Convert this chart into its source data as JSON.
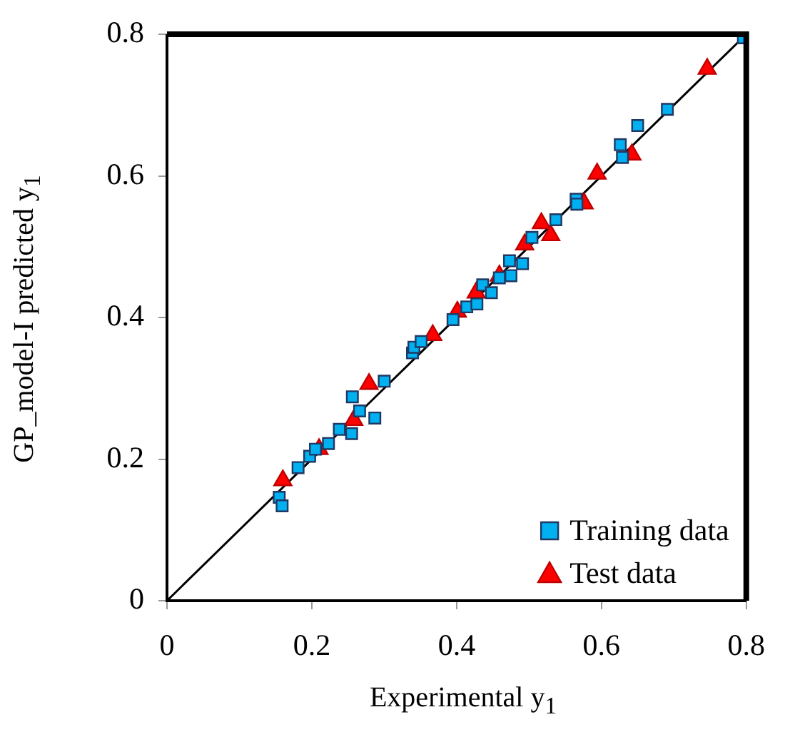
{
  "chart_data": {
    "type": "scatter",
    "xlabel": "Experimental y$_{1}$",
    "ylabel": "GP_model-I predicted y$_{1}$",
    "xlim": [
      0,
      0.8
    ],
    "ylim": [
      0,
      0.8
    ],
    "xticks": [
      0,
      0.2,
      0.4,
      0.6,
      0.8
    ],
    "yticks": [
      0,
      0.2,
      0.4,
      0.6,
      0.8
    ],
    "grid": false,
    "legend": "bottom right",
    "series": [
      {
        "name": "Training data",
        "color": "#00b0f0",
        "marker": "square",
        "x": [
          0.155,
          0.159,
          0.181,
          0.197,
          0.205,
          0.223,
          0.238,
          0.255,
          0.256,
          0.266,
          0.287,
          0.3,
          0.339,
          0.341,
          0.351,
          0.395,
          0.414,
          0.428,
          0.436,
          0.448,
          0.459,
          0.473,
          0.475,
          0.491,
          0.504,
          0.537,
          0.565,
          0.566,
          0.626,
          0.629,
          0.65,
          0.691,
          0.796
        ],
        "values": [
          0.146,
          0.134,
          0.188,
          0.204,
          0.214,
          0.222,
          0.242,
          0.236,
          0.288,
          0.268,
          0.258,
          0.31,
          0.35,
          0.358,
          0.366,
          0.397,
          0.415,
          0.419,
          0.446,
          0.435,
          0.456,
          0.48,
          0.459,
          0.476,
          0.513,
          0.538,
          0.567,
          0.56,
          0.644,
          0.626,
          0.671,
          0.694,
          0.795
        ]
      },
      {
        "name": "Test data",
        "color": "#ff0000",
        "marker": "triangle",
        "x": [
          0.16,
          0.21,
          0.258,
          0.279,
          0.367,
          0.401,
          0.427,
          0.459,
          0.494,
          0.517,
          0.53,
          0.576,
          0.594,
          0.642,
          0.746
        ],
        "values": [
          0.17,
          0.214,
          0.255,
          0.306,
          0.375,
          0.408,
          0.435,
          0.459,
          0.503,
          0.533,
          0.516,
          0.561,
          0.603,
          0.63,
          0.751
        ]
      },
      {
        "type": "line",
        "color": "#000000",
        "marker": "none",
        "x": [
          0,
          0.8
        ],
        "values": [
          0,
          0.8
        ]
      }
    ]
  }
}
